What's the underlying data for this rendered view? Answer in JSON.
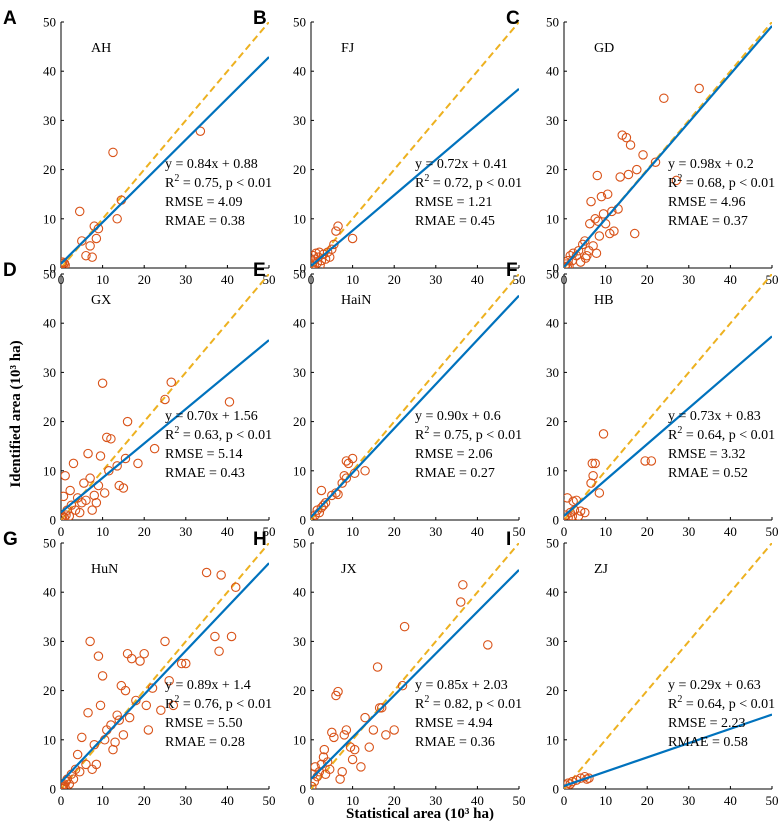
{
  "figure": {
    "xlabel": "Statistical area (10³ ha)",
    "ylabel": "Identified area (10³ ha)",
    "colors": {
      "fit": "#0072BD",
      "ref": "#EDB120",
      "points": "#D95319"
    }
  },
  "chart_data": [
    {
      "type": "scatter",
      "letter": "A",
      "region": "AH",
      "xlim": [
        0,
        50
      ],
      "ylim": [
        0,
        50
      ],
      "xticks": [
        0,
        10,
        20,
        30,
        40,
        50
      ],
      "yticks": [
        0,
        10,
        20,
        30,
        40,
        50
      ],
      "fit": {
        "slope": 0.84,
        "intercept": 0.88
      },
      "stats": [
        "y = 0.84x + 0.88",
        "R2 = 0.75, p < 0.01",
        "RMSE = 4.09",
        "RMAE = 0.38"
      ],
      "points": [
        [
          0.2,
          0.8
        ],
        [
          0.4,
          1.2
        ],
        [
          0.5,
          0.5
        ],
        [
          0.8,
          1.0
        ],
        [
          1.0,
          0.6
        ],
        [
          4.5,
          11.5
        ],
        [
          5.0,
          5.5
        ],
        [
          6.0,
          2.5
        ],
        [
          7.0,
          4.5
        ],
        [
          7.5,
          2.2
        ],
        [
          8.0,
          8.5
        ],
        [
          8.5,
          6.0
        ],
        [
          9.0,
          8.0
        ],
        [
          12.5,
          23.5
        ],
        [
          13.5,
          10.0
        ],
        [
          14.5,
          13.8
        ],
        [
          33.5,
          27.8
        ]
      ]
    },
    {
      "type": "scatter",
      "letter": "B",
      "region": "FJ",
      "xlim": [
        0,
        50
      ],
      "ylim": [
        0,
        50
      ],
      "xticks": [
        0,
        10,
        20,
        30,
        40,
        50
      ],
      "yticks": [
        0,
        10,
        20,
        30,
        40,
        50
      ],
      "fit": {
        "slope": 0.72,
        "intercept": 0.41
      },
      "stats": [
        "y = 0.72x + 0.41",
        "R2 = 0.72, p < 0.01",
        "RMSE = 1.21",
        "RMAE = 0.45"
      ],
      "points": [
        [
          0.3,
          0.5
        ],
        [
          0.5,
          1.2
        ],
        [
          0.6,
          2.5
        ],
        [
          0.8,
          0.8
        ],
        [
          1.0,
          1.8
        ],
        [
          1.2,
          3.0
        ],
        [
          1.5,
          1.0
        ],
        [
          1.8,
          2.2
        ],
        [
          2.0,
          3.2
        ],
        [
          2.2,
          0.6
        ],
        [
          2.5,
          1.5
        ],
        [
          3.0,
          2.8
        ],
        [
          3.5,
          1.8
        ],
        [
          4.0,
          3.2
        ],
        [
          4.5,
          2.2
        ],
        [
          5.0,
          3.8
        ],
        [
          5.5,
          4.8
        ],
        [
          6.0,
          7.5
        ],
        [
          6.5,
          8.5
        ],
        [
          10.0,
          6.0
        ]
      ]
    },
    {
      "type": "scatter",
      "letter": "C",
      "region": "GD",
      "xlim": [
        0,
        50
      ],
      "ylim": [
        0,
        50
      ],
      "xticks": [
        0,
        10,
        20,
        30,
        40,
        50
      ],
      "yticks": [
        0,
        10,
        20,
        30,
        40,
        50
      ],
      "fit": {
        "slope": 0.98,
        "intercept": 0.2
      },
      "stats": [
        "y = 0.98x + 0.2",
        "R2 = 0.68, p < 0.01",
        "RMSE = 4.96",
        "RMAE = 0.37"
      ],
      "points": [
        [
          0.3,
          0.3
        ],
        [
          0.5,
          0.8
        ],
        [
          0.8,
          0.2
        ],
        [
          1.0,
          1.5
        ],
        [
          1.2,
          0.5
        ],
        [
          1.5,
          2.5
        ],
        [
          2.0,
          1.5
        ],
        [
          2.2,
          3.0
        ],
        [
          3.0,
          2.5
        ],
        [
          3.5,
          3.5
        ],
        [
          4.0,
          1.2
        ],
        [
          4.5,
          4.8
        ],
        [
          5.0,
          5.5
        ],
        [
          5.2,
          2.0
        ],
        [
          5.5,
          2.5
        ],
        [
          6.0,
          3.5
        ],
        [
          6.2,
          9.0
        ],
        [
          6.5,
          13.5
        ],
        [
          7.0,
          4.5
        ],
        [
          7.5,
          10.0
        ],
        [
          7.8,
          3.0
        ],
        [
          8.0,
          18.8
        ],
        [
          8.2,
          9.5
        ],
        [
          8.5,
          6.5
        ],
        [
          9.0,
          14.5
        ],
        [
          9.5,
          11.0
        ],
        [
          10.0,
          9.0
        ],
        [
          10.5,
          15.0
        ],
        [
          11.0,
          7.0
        ],
        [
          11.5,
          11.5
        ],
        [
          12.0,
          7.5
        ],
        [
          13.0,
          12.0
        ],
        [
          13.5,
          18.5
        ],
        [
          14.0,
          27.0
        ],
        [
          15.0,
          26.5
        ],
        [
          15.5,
          19.0
        ],
        [
          16.0,
          25.0
        ],
        [
          17.0,
          7.0
        ],
        [
          17.5,
          20.0
        ],
        [
          19.0,
          23.0
        ],
        [
          22.0,
          21.5
        ],
        [
          24.0,
          34.5
        ],
        [
          27.0,
          17.8
        ],
        [
          32.5,
          36.5
        ]
      ]
    },
    {
      "type": "scatter",
      "letter": "D",
      "region": "GX",
      "xlim": [
        0,
        50
      ],
      "ylim": [
        0,
        50
      ],
      "xticks": [
        0,
        10,
        20,
        30,
        40,
        50
      ],
      "yticks": [
        0,
        10,
        20,
        30,
        40,
        50
      ],
      "fit": {
        "slope": 0.7,
        "intercept": 1.56
      },
      "stats": [
        "y = 0.70x + 1.56",
        "R2 = 0.63, p < 0.01",
        "RMSE = 5.14",
        "RMAE = 0.43"
      ],
      "points": [
        [
          0.2,
          0.3
        ],
        [
          0.4,
          0.8
        ],
        [
          0.6,
          4.8
        ],
        [
          0.8,
          0.5
        ],
        [
          1.0,
          9.0
        ],
        [
          1.2,
          1.0
        ],
        [
          1.5,
          2.0
        ],
        [
          2.0,
          0.8
        ],
        [
          2.2,
          6.0
        ],
        [
          2.5,
          3.0
        ],
        [
          3.0,
          11.5
        ],
        [
          3.5,
          2.0
        ],
        [
          4.0,
          4.5
        ],
        [
          4.5,
          1.5
        ],
        [
          5.0,
          3.5
        ],
        [
          5.5,
          7.5
        ],
        [
          6.0,
          4.0
        ],
        [
          6.5,
          13.5
        ],
        [
          7.0,
          8.5
        ],
        [
          7.5,
          2.0
        ],
        [
          8.0,
          5.0
        ],
        [
          8.5,
          3.5
        ],
        [
          9.0,
          7.0
        ],
        [
          9.5,
          13.0
        ],
        [
          10.0,
          27.8
        ],
        [
          10.5,
          5.5
        ],
        [
          11.0,
          16.8
        ],
        [
          11.5,
          10.0
        ],
        [
          12.0,
          16.5
        ],
        [
          13.5,
          11.0
        ],
        [
          14.0,
          7.0
        ],
        [
          15.0,
          6.5
        ],
        [
          15.5,
          12.5
        ],
        [
          16.0,
          20.0
        ],
        [
          18.5,
          11.5
        ],
        [
          22.5,
          14.5
        ],
        [
          25.0,
          24.5
        ],
        [
          26.5,
          28.0
        ],
        [
          40.5,
          24.0
        ]
      ]
    },
    {
      "type": "scatter",
      "letter": "E",
      "region": "HaiN",
      "xlim": [
        0,
        50
      ],
      "ylim": [
        0,
        50
      ],
      "xticks": [
        0,
        10,
        20,
        30,
        40,
        50
      ],
      "yticks": [
        0,
        10,
        20,
        30,
        40,
        50
      ],
      "fit": {
        "slope": 0.9,
        "intercept": 0.6
      },
      "stats": [
        "y = 0.90x + 0.6",
        "R2 = 0.75, p < 0.01",
        "RMSE = 2.06",
        "RMAE = 0.27"
      ],
      "points": [
        [
          0.3,
          0.3
        ],
        [
          1.0,
          1.0
        ],
        [
          1.5,
          2.0
        ],
        [
          2.0,
          1.5
        ],
        [
          2.5,
          2.5
        ],
        [
          2.5,
          6.0
        ],
        [
          3.0,
          3.0
        ],
        [
          3.5,
          3.5
        ],
        [
          5.0,
          5.0
        ],
        [
          6.0,
          5.5
        ],
        [
          6.5,
          5.2
        ],
        [
          7.5,
          7.5
        ],
        [
          8.0,
          9.0
        ],
        [
          8.5,
          8.5
        ],
        [
          8.5,
          12.0
        ],
        [
          9.0,
          11.5
        ],
        [
          10.0,
          12.5
        ],
        [
          10.5,
          9.5
        ],
        [
          13.0,
          10.0
        ]
      ]
    },
    {
      "type": "scatter",
      "letter": "F",
      "region": "HB",
      "xlim": [
        0,
        50
      ],
      "ylim": [
        0,
        50
      ],
      "xticks": [
        0,
        10,
        20,
        30,
        40,
        50
      ],
      "yticks": [
        0,
        10,
        20,
        30,
        40,
        50
      ],
      "fit": {
        "slope": 0.73,
        "intercept": 0.83
      },
      "stats": [
        "y = 0.73x + 0.83",
        "R2 = 0.64, p < 0.01",
        "RMSE = 3.32",
        "RMAE = 0.52"
      ],
      "points": [
        [
          0.2,
          0.3
        ],
        [
          0.5,
          1.0
        ],
        [
          0.8,
          4.5
        ],
        [
          1.0,
          0.5
        ],
        [
          1.5,
          1.5
        ],
        [
          2.0,
          0.8
        ],
        [
          2.2,
          3.8
        ],
        [
          2.5,
          2.0
        ],
        [
          3.0,
          4.0
        ],
        [
          3.5,
          0.8
        ],
        [
          4.0,
          1.8
        ],
        [
          5.0,
          1.5
        ],
        [
          6.5,
          7.5
        ],
        [
          6.8,
          11.5
        ],
        [
          7.0,
          9.0
        ],
        [
          7.5,
          11.5
        ],
        [
          8.5,
          5.5
        ],
        [
          9.5,
          17.5
        ],
        [
          19.5,
          12.0
        ],
        [
          21.0,
          12.0
        ]
      ]
    },
    {
      "type": "scatter",
      "letter": "G",
      "region": "HuN",
      "xlim": [
        0,
        50
      ],
      "ylim": [
        0,
        50
      ],
      "xticks": [
        0,
        10,
        20,
        30,
        40,
        50
      ],
      "yticks": [
        0,
        10,
        20,
        30,
        40,
        50
      ],
      "fit": {
        "slope": 0.89,
        "intercept": 1.4
      },
      "stats": [
        "y = 0.89x + 1.4",
        "R2 = 0.76, p < 0.01",
        "RMSE = 5.50",
        "RMAE = 0.28"
      ],
      "points": [
        [
          0.2,
          0.2
        ],
        [
          0.4,
          0.5
        ],
        [
          0.6,
          0.8
        ],
        [
          0.8,
          1.0
        ],
        [
          1.0,
          0.3
        ],
        [
          1.2,
          1.5
        ],
        [
          1.5,
          2.0
        ],
        [
          2.0,
          1.0
        ],
        [
          2.5,
          3.0
        ],
        [
          3.0,
          2.0
        ],
        [
          3.5,
          4.0
        ],
        [
          4.0,
          7.0
        ],
        [
          4.5,
          3.5
        ],
        [
          5.0,
          10.5
        ],
        [
          6.0,
          5.0
        ],
        [
          6.5,
          15.5
        ],
        [
          7.0,
          30.0
        ],
        [
          7.5,
          4.0
        ],
        [
          8.0,
          9.0
        ],
        [
          8.5,
          5.0
        ],
        [
          9.0,
          27.0
        ],
        [
          9.5,
          17.0
        ],
        [
          10.0,
          23.0
        ],
        [
          10.5,
          10.0
        ],
        [
          11.0,
          12.0
        ],
        [
          12.0,
          13.0
        ],
        [
          12.5,
          8.0
        ],
        [
          13.0,
          9.5
        ],
        [
          13.5,
          15.0
        ],
        [
          14.0,
          14.0
        ],
        [
          14.5,
          21.0
        ],
        [
          15.0,
          11.0
        ],
        [
          15.5,
          20.0
        ],
        [
          16.0,
          27.5
        ],
        [
          16.5,
          14.5
        ],
        [
          17.0,
          26.5
        ],
        [
          18.0,
          18.0
        ],
        [
          19.0,
          26.0
        ],
        [
          20.0,
          27.5
        ],
        [
          20.5,
          17.0
        ],
        [
          21.0,
          12.0
        ],
        [
          22.0,
          20.5
        ],
        [
          24.0,
          16.0
        ],
        [
          25.0,
          30.0
        ],
        [
          26.0,
          22.0
        ],
        [
          27.0,
          17.0
        ],
        [
          29.0,
          25.5
        ],
        [
          30.0,
          25.5
        ],
        [
          35.0,
          44.0
        ],
        [
          37.0,
          31.0
        ],
        [
          38.0,
          28.0
        ],
        [
          38.5,
          43.5
        ],
        [
          41.0,
          31.0
        ],
        [
          42.0,
          41.0
        ]
      ]
    },
    {
      "type": "scatter",
      "letter": "H",
      "region": "JX",
      "xlim": [
        0,
        50
      ],
      "ylim": [
        0,
        50
      ],
      "xticks": [
        0,
        10,
        20,
        30,
        40,
        50
      ],
      "yticks": [
        0,
        10,
        20,
        30,
        40,
        50
      ],
      "fit": {
        "slope": 0.85,
        "intercept": 2.03
      },
      "stats": [
        "y = 0.85x + 2.03",
        "R2 = 0.82, p < 0.01",
        "RMSE = 4.94",
        "RMAE = 0.36"
      ],
      "points": [
        [
          0.2,
          0.5
        ],
        [
          0.5,
          3.0
        ],
        [
          0.8,
          1.5
        ],
        [
          1.0,
          4.5
        ],
        [
          1.5,
          2.5
        ],
        [
          2.0,
          3.5
        ],
        [
          2.5,
          5.0
        ],
        [
          3.0,
          6.5
        ],
        [
          3.2,
          8.0
        ],
        [
          3.5,
          3.0
        ],
        [
          4.0,
          5.5
        ],
        [
          4.5,
          4.0
        ],
        [
          5.0,
          11.5
        ],
        [
          5.5,
          10.5
        ],
        [
          6.0,
          19.0
        ],
        [
          6.5,
          19.8
        ],
        [
          7.0,
          2.0
        ],
        [
          7.5,
          3.5
        ],
        [
          8.0,
          11.0
        ],
        [
          8.5,
          12.0
        ],
        [
          9.5,
          8.5
        ],
        [
          10.0,
          6.0
        ],
        [
          10.5,
          8.0
        ],
        [
          12.0,
          4.5
        ],
        [
          13.0,
          14.5
        ],
        [
          14.0,
          8.5
        ],
        [
          15.0,
          12.0
        ],
        [
          16.0,
          24.8
        ],
        [
          16.5,
          16.5
        ],
        [
          17.0,
          16.5
        ],
        [
          18.0,
          11.0
        ],
        [
          20.0,
          12.0
        ],
        [
          22.0,
          21.0
        ],
        [
          22.5,
          33.0
        ],
        [
          36.0,
          38.0
        ],
        [
          36.5,
          41.5
        ],
        [
          42.5,
          29.3
        ]
      ]
    },
    {
      "type": "scatter",
      "letter": "I",
      "region": "ZJ",
      "xlim": [
        0,
        50
      ],
      "ylim": [
        0,
        50
      ],
      "xticks": [
        0,
        10,
        20,
        30,
        40,
        50
      ],
      "yticks": [
        0,
        10,
        20,
        30,
        40,
        50
      ],
      "fit": {
        "slope": 0.29,
        "intercept": 0.63
      },
      "stats": [
        "y = 0.29x + 0.63",
        "R2 = 0.64, p < 0.01",
        "RMSE = 2.23",
        "RMAE = 0.58"
      ],
      "points": [
        [
          0.5,
          0.8
        ],
        [
          1.0,
          1.2
        ],
        [
          1.5,
          1.0
        ],
        [
          2.0,
          1.5
        ],
        [
          3.0,
          1.8
        ],
        [
          4.0,
          2.2
        ],
        [
          5.0,
          2.5
        ],
        [
          5.5,
          2.0
        ],
        [
          6.0,
          2.2
        ]
      ]
    }
  ]
}
